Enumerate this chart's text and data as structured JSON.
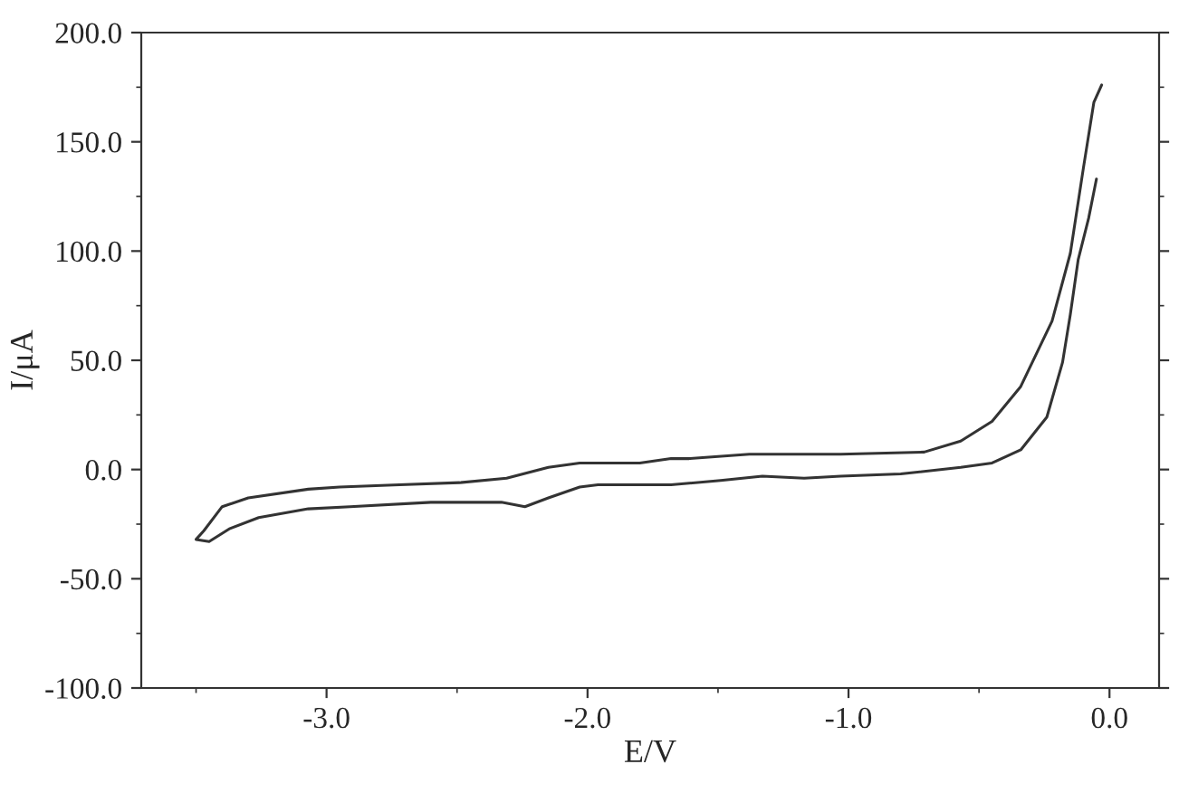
{
  "chart_data": {
    "type": "line",
    "xlabel": "E/V",
    "ylabel": "I/μA",
    "xlim": [
      -3.71,
      0.19
    ],
    "ylim": [
      -100,
      200
    ],
    "xticks": [
      {
        "value": -3,
        "label": "-3.0"
      },
      {
        "value": -2,
        "label": "-2.0"
      },
      {
        "value": -1,
        "label": "-1.0"
      },
      {
        "value": 0,
        "label": "0.0"
      }
    ],
    "yticks": [
      {
        "value": -100,
        "label": "-100.0"
      },
      {
        "value": -50,
        "label": "-50.0"
      },
      {
        "value": 0,
        "label": "0.0"
      },
      {
        "value": 50,
        "label": "50.0"
      },
      {
        "value": 100,
        "label": "100.0"
      },
      {
        "value": 150,
        "label": "150.0"
      },
      {
        "value": 200,
        "label": "200.0"
      }
    ],
    "marker": "none",
    "line_style": "solid",
    "series": [
      {
        "color": "#333333",
        "x": [
          -0.05,
          -0.08,
          -0.12,
          -0.15,
          -0.18,
          -0.24,
          -0.34,
          -0.45,
          -0.57,
          -0.8,
          -1.03,
          -1.17,
          -1.33,
          -1.49,
          -1.68,
          -1.96,
          -2.03,
          -2.15,
          -2.24,
          -2.33,
          -2.6,
          -2.91,
          -3.07,
          -3.26,
          -3.37,
          -3.45,
          -3.5,
          -3.47,
          -3.4,
          -3.3,
          -3.07,
          -2.95,
          -2.72,
          -2.49,
          -2.31,
          -2.15,
          -2.03,
          -1.8,
          -1.68,
          -1.61,
          -1.38,
          -1.03,
          -0.71,
          -0.57,
          -0.45,
          -0.34,
          -0.22,
          -0.15,
          -0.1,
          -0.06,
          -0.03
        ],
        "values": [
          133,
          115,
          96,
          71,
          49,
          24,
          9,
          3,
          1,
          -2,
          -3,
          -4,
          -3,
          -5,
          -7,
          -7,
          -8,
          -13,
          -17,
          -15,
          -15,
          -17,
          -18,
          -22,
          -27,
          -33,
          -32,
          -28,
          -17,
          -13,
          -9,
          -8,
          -7,
          -6,
          -4,
          1,
          3,
          3,
          5,
          5,
          7,
          7,
          8,
          13,
          22,
          38,
          68,
          99,
          138,
          168,
          176
        ]
      }
    ]
  }
}
